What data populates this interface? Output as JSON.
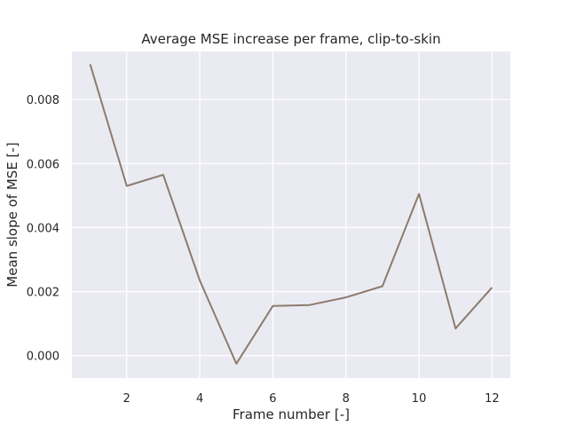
{
  "chart_data": {
    "type": "line",
    "title": "Average MSE increase per frame, clip-to-skin",
    "xlabel": "Frame number [-]",
    "ylabel": "Mean slope of MSE [-]",
    "x": [
      1,
      2,
      3,
      4,
      5,
      6,
      7,
      8,
      9,
      10,
      11,
      12
    ],
    "series": [
      {
        "values": [
          0.0091,
          0.0053,
          0.00565,
          0.00235,
          -0.00025,
          0.00155,
          0.00158,
          0.00182,
          0.00217,
          0.00505,
          0.00085,
          0.00213
        ],
        "color": "#8c7b6e"
      }
    ],
    "xlim": [
      0.5,
      12.5
    ],
    "ylim": [
      -0.0007,
      0.0095
    ],
    "xticks": [
      "2",
      "4",
      "6",
      "8",
      "10",
      "12"
    ],
    "yticks": [
      "0.000",
      "0.002",
      "0.004",
      "0.006",
      "0.008"
    ],
    "grid": true,
    "background": "#eaeaf2",
    "grid_color": "#ffffff"
  }
}
